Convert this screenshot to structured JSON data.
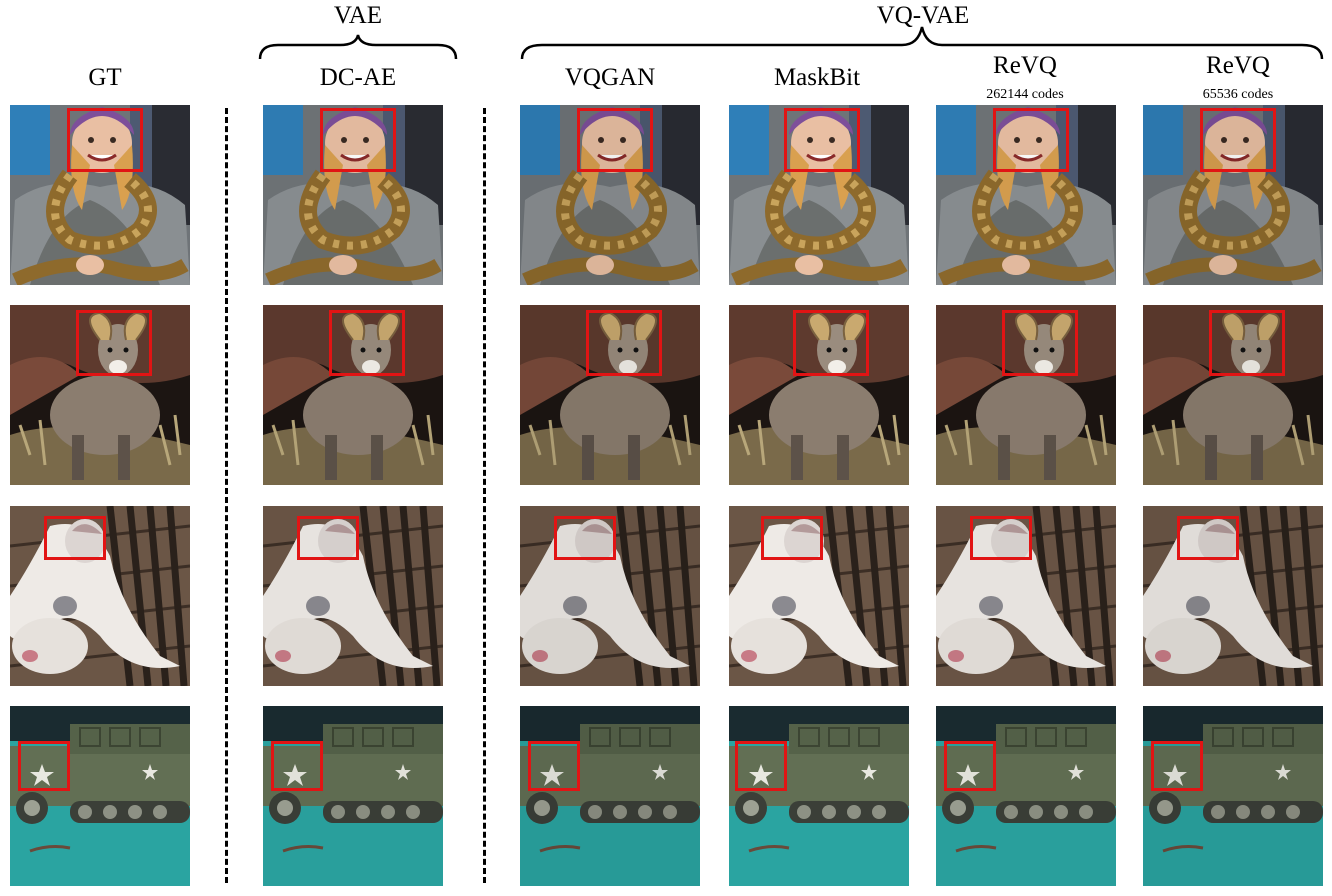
{
  "groups": [
    {
      "label": "VAE"
    },
    {
      "label": "VQ-VAE"
    }
  ],
  "columns": [
    {
      "label": "GT",
      "sublabel": ""
    },
    {
      "label": "DC-AE",
      "sublabel": ""
    },
    {
      "label": "VQGAN",
      "sublabel": ""
    },
    {
      "label": "MaskBit",
      "sublabel": ""
    },
    {
      "label": "ReVQ",
      "sublabel": "262144 codes"
    },
    {
      "label": "ReVQ",
      "sublabel": "65536 codes"
    }
  ],
  "rows": [
    {
      "subject": "girl-with-python"
    },
    {
      "subject": "bighorn-ram"
    },
    {
      "subject": "dog-on-deck"
    },
    {
      "subject": "toy-halftrack"
    }
  ],
  "colors": {
    "highlight_box": "#e11414"
  }
}
